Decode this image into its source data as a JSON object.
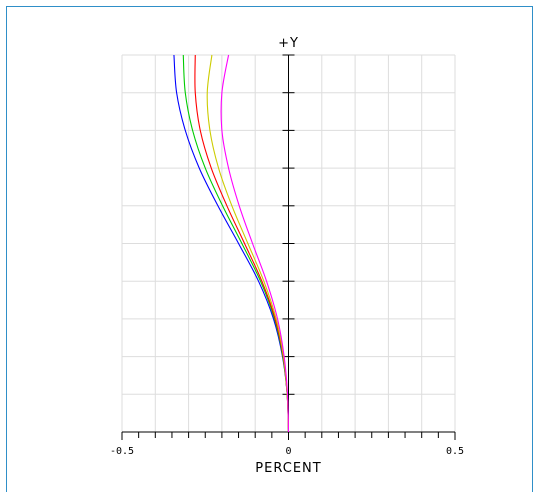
{
  "chart_data": {
    "type": "line",
    "title": "",
    "xlabel": "PERCENT",
    "ylabel": "+Y",
    "xlim": [
      -0.5,
      0.5
    ],
    "ylim": [
      0,
      1
    ],
    "x_tick_labels": [
      "-0.5",
      "0",
      "0.5"
    ],
    "grid": true,
    "series": [
      {
        "color": "#0000ff",
        "points": [
          [
            0,
            0
          ],
          [
            -0.004,
            0.1
          ],
          [
            -0.018,
            0.2
          ],
          [
            -0.045,
            0.3
          ],
          [
            -0.09,
            0.4
          ],
          [
            -0.15,
            0.5
          ],
          [
            -0.212,
            0.6
          ],
          [
            -0.268,
            0.7
          ],
          [
            -0.31,
            0.8
          ],
          [
            -0.336,
            0.9
          ],
          [
            -0.344,
            1.0
          ]
        ]
      },
      {
        "color": "#00cc00",
        "points": [
          [
            0,
            0
          ],
          [
            -0.004,
            0.1
          ],
          [
            -0.017,
            0.2
          ],
          [
            -0.042,
            0.3
          ],
          [
            -0.084,
            0.4
          ],
          [
            -0.14,
            0.5
          ],
          [
            -0.198,
            0.6
          ],
          [
            -0.25,
            0.7
          ],
          [
            -0.288,
            0.8
          ],
          [
            -0.31,
            0.9
          ],
          [
            -0.316,
            1.0
          ]
        ]
      },
      {
        "color": "#ff0000",
        "points": [
          [
            0,
            0
          ],
          [
            -0.004,
            0.1
          ],
          [
            -0.016,
            0.2
          ],
          [
            -0.04,
            0.3
          ],
          [
            -0.08,
            0.4
          ],
          [
            -0.132,
            0.5
          ],
          [
            -0.185,
            0.6
          ],
          [
            -0.232,
            0.7
          ],
          [
            -0.265,
            0.8
          ],
          [
            -0.28,
            0.9
          ],
          [
            -0.28,
            1.0
          ]
        ]
      },
      {
        "color": "#cccc00",
        "points": [
          [
            0,
            0
          ],
          [
            -0.004,
            0.1
          ],
          [
            -0.015,
            0.2
          ],
          [
            -0.037,
            0.3
          ],
          [
            -0.074,
            0.4
          ],
          [
            -0.122,
            0.5
          ],
          [
            -0.17,
            0.6
          ],
          [
            -0.21,
            0.7
          ],
          [
            -0.236,
            0.8
          ],
          [
            -0.244,
            0.9
          ],
          [
            -0.23,
            1.0
          ]
        ]
      },
      {
        "color": "#ff00ff",
        "points": [
          [
            0,
            0
          ],
          [
            -0.003,
            0.1
          ],
          [
            -0.013,
            0.2
          ],
          [
            -0.033,
            0.3
          ],
          [
            -0.066,
            0.4
          ],
          [
            -0.108,
            0.5
          ],
          [
            -0.148,
            0.6
          ],
          [
            -0.18,
            0.7
          ],
          [
            -0.2,
            0.8
          ],
          [
            -0.2,
            0.9
          ],
          [
            -0.18,
            1.0
          ]
        ]
      }
    ]
  }
}
